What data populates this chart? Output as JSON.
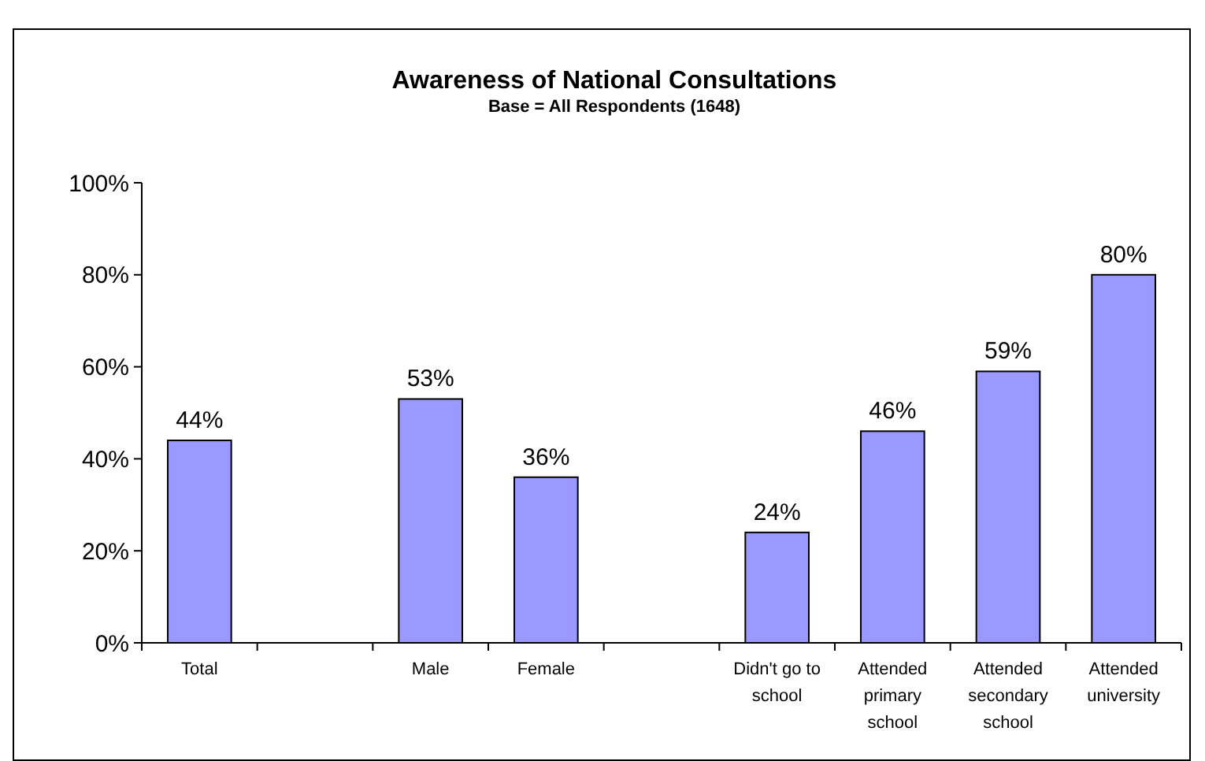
{
  "chart_data": {
    "type": "bar",
    "title": "Awareness of National Consultations",
    "subtitle": "Base = All Respondents (1648)",
    "categories": [
      "Total",
      null,
      "Male",
      "Female",
      null,
      "Didn't go to school",
      "Attended primary school",
      "Attended secondary school",
      "Attended university"
    ],
    "values": [
      44,
      null,
      53,
      36,
      null,
      24,
      46,
      59,
      80
    ],
    "color": "#9999ff",
    "ylim": [
      0,
      100
    ],
    "yticks": [
      {
        "value": 0,
        "label": "0%"
      },
      {
        "value": 20,
        "label": "20%"
      },
      {
        "value": 40,
        "label": "40%"
      },
      {
        "value": 60,
        "label": "60%"
      },
      {
        "value": 80,
        "label": "80%"
      },
      {
        "value": 100,
        "label": "100%"
      }
    ],
    "data_labels": true,
    "value_labels": [
      "44%",
      null,
      "53%",
      "36%",
      null,
      "24%",
      "46%",
      "59%",
      "80%"
    ],
    "grid": false
  }
}
